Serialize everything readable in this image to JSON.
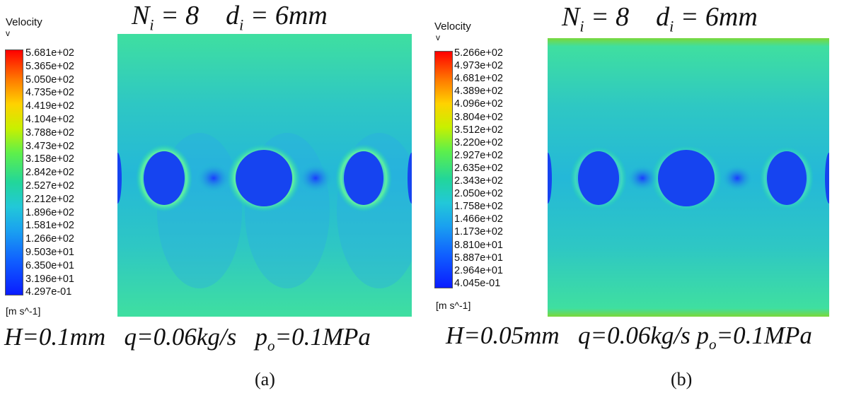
{
  "panels": [
    {
      "id": "a",
      "legend_title": "Velocity",
      "legend_var": "v",
      "ticks": [
        "5.681e+02",
        "5.365e+02",
        "5.050e+02",
        "4.735e+02",
        "4.419e+02",
        "4.104e+02",
        "3.788e+02",
        "3.473e+02",
        "3.158e+02",
        "2.842e+02",
        "2.527e+02",
        "2.212e+02",
        "1.896e+02",
        "1.581e+02",
        "1.266e+02",
        "9.503e+01",
        "6.350e+01",
        "3.196e+01",
        "4.297e-01"
      ],
      "unit": "[m s^-1]",
      "heading": {
        "n_sym": "N",
        "n_sub": "i",
        "n_val": " = 8",
        "d_sym": "d",
        "d_sub": "i",
        "d_val": " = 6mm"
      },
      "footer": {
        "h": "H=0.1mm",
        "q": "q=0.06kg/s",
        "p_sym": "p",
        "p_sub": "o",
        "p_val": "=0.1MPa"
      },
      "caption": "(a)"
    },
    {
      "id": "b",
      "legend_title": "Velocity",
      "legend_var": "v",
      "ticks": [
        "5.266e+02",
        "4.973e+02",
        "4.681e+02",
        "4.389e+02",
        "4.096e+02",
        "3.804e+02",
        "3.512e+02",
        "3.220e+02",
        "2.927e+02",
        "2.635e+02",
        "2.343e+02",
        "2.050e+02",
        "1.758e+02",
        "1.466e+02",
        "1.173e+02",
        "8.810e+01",
        "5.887e+01",
        "2.964e+01",
        "4.045e-01"
      ],
      "unit": "[m s^-1]",
      "heading": {
        "n_sym": "N",
        "n_sub": "i",
        "n_val": " = 8",
        "d_sym": "d",
        "d_sub": "i",
        "d_val": " = 6mm"
      },
      "footer": {
        "h": "H=0.05mm",
        "q": "q=0.06kg/s",
        "p_sym": "p",
        "p_sub": "o",
        "p_val": "=0.1MPa"
      },
      "caption": "(b)"
    }
  ]
}
